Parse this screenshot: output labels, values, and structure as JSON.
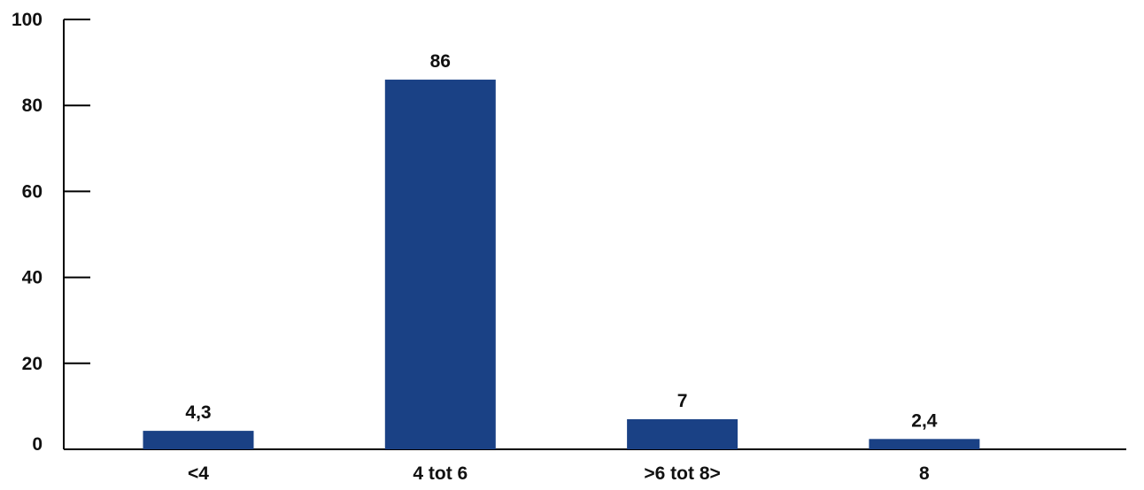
{
  "chart_data": {
    "type": "bar",
    "categories": [
      "<4",
      "4 tot 6",
      ">6 tot 8>",
      "8"
    ],
    "values": [
      4.3,
      86,
      7,
      2.4
    ],
    "data_labels": [
      "4,3",
      "86",
      "7",
      "2,4"
    ],
    "y_ticks": [
      0,
      20,
      40,
      60,
      80,
      100
    ],
    "y_tick_labels": [
      "0",
      "20",
      "40",
      "60",
      "80",
      "100"
    ],
    "ylim": [
      0,
      100
    ],
    "title": "",
    "xlabel": "",
    "ylabel": "",
    "grid": false,
    "bar_color": "#1a4185",
    "axis_color": "#000000"
  }
}
